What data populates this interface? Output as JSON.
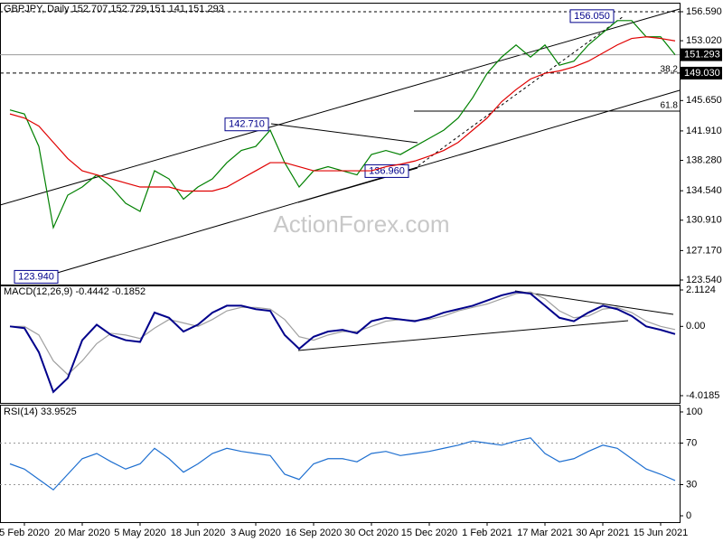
{
  "chart_data": [
    {
      "type": "line",
      "title": "GBPJPY, Daily 152.707,152.729,151.141,151.293",
      "watermark": "ActionForex.com",
      "ylim": [
        123.54,
        156.59
      ],
      "yticks": [
        {
          "value": 156.59,
          "label": "156.590"
        },
        {
          "value": 153.02,
          "label": "153.020"
        },
        {
          "value": 145.65,
          "label": "145.650"
        },
        {
          "value": 141.91,
          "label": "141.910"
        },
        {
          "value": 138.28,
          "label": "138.280"
        },
        {
          "value": 134.54,
          "label": "134.540"
        },
        {
          "value": 130.91,
          "label": "130.910"
        },
        {
          "value": 127.17,
          "label": "127.170"
        },
        {
          "value": 123.54,
          "label": "123.540"
        }
      ],
      "levels": [
        {
          "value": 149.03,
          "label": "149.030"
        },
        {
          "value": 151.293,
          "label": "151.293"
        }
      ],
      "fib_levels": [
        38.2,
        61.8
      ],
      "annotations": [
        {
          "value": 156.05,
          "label": "156.050"
        },
        {
          "value": 142.71,
          "label": "142.710"
        },
        {
          "value": 136.96,
          "label": "136.960"
        },
        {
          "value": 123.94,
          "label": "123.940"
        }
      ],
      "series": [
        {
          "color": "#008000",
          "values": [
            144.5,
            144,
            140,
            130,
            134,
            135,
            136.5,
            135,
            133,
            132,
            137,
            136,
            133.5,
            135,
            136,
            138,
            139.5,
            140,
            142,
            138,
            135,
            137,
            137.5,
            137,
            136.5,
            139,
            139.5,
            139,
            140,
            141,
            142,
            143.5,
            146,
            149,
            151,
            152.5,
            151,
            152.5,
            150,
            150.5,
            152.5,
            154,
            155.5,
            155.5,
            153.5,
            153.5,
            151.293
          ]
        },
        {
          "color": "#e00000",
          "values": [
            144,
            143.5,
            142.5,
            140.5,
            138.5,
            137,
            136.5,
            136,
            135.5,
            135,
            135,
            135,
            134.5,
            134.5,
            134.5,
            135,
            136,
            137,
            138,
            138,
            137.5,
            137,
            137,
            137,
            137,
            137,
            137.5,
            137.8,
            138.2,
            138.8,
            139.5,
            140.5,
            142,
            143.5,
            145.5,
            147,
            148.3,
            149,
            149.3,
            149.8,
            150.5,
            151.5,
            152.5,
            153.3,
            153.5,
            153.3,
            153
          ]
        }
      ]
    },
    {
      "type": "line",
      "title": "MACD(12,26,9) -0.4442 -0.1852",
      "ylim": [
        -4.0185,
        2.1124
      ],
      "yticks": [
        2.1124,
        {
          "value": 0,
          "label": "0.00"
        },
        -4.0185
      ],
      "series": [
        {
          "color": "#a0a0a0",
          "values": [
            0,
            0,
            -0.5,
            -2,
            -2.8,
            -2,
            -1,
            -0.4,
            -0.5,
            -0.7,
            -0.1,
            0.4,
            0.2,
            0,
            0.4,
            0.9,
            1.1,
            1.1,
            1,
            0.4,
            -0.6,
            -0.8,
            -0.5,
            -0.3,
            -0.3,
            0,
            0.3,
            0.4,
            0.35,
            0.4,
            0.6,
            0.9,
            1.1,
            1.3,
            1.6,
            1.9,
            2,
            1.6,
            0.9,
            0.5,
            0.6,
            1,
            1.1,
            0.8,
            0.3,
            0,
            -0.1852
          ]
        },
        {
          "color": "#00008b",
          "values": [
            0,
            -0.1,
            -1.5,
            -3.8,
            -3,
            -0.8,
            0.1,
            -0.5,
            -0.8,
            -0.9,
            0.8,
            0.5,
            -0.3,
            0.1,
            0.8,
            1.2,
            1.2,
            1,
            0.9,
            -0.5,
            -1.3,
            -0.6,
            -0.3,
            -0.2,
            -0.4,
            0.3,
            0.5,
            0.4,
            0.3,
            0.5,
            0.8,
            1,
            1.2,
            1.5,
            1.8,
            2,
            1.9,
            1.2,
            0.5,
            0.3,
            0.8,
            1.2,
            1,
            0.6,
            0,
            -0.2,
            -0.4442
          ]
        }
      ]
    },
    {
      "type": "line",
      "title": "RSI(14) 33.9525",
      "ylim": [
        0,
        100
      ],
      "yticks": [
        100,
        70,
        30,
        0
      ],
      "categories": [
        null,
        "5 Feb 2020",
        null,
        null,
        null,
        "20 Mar 2020",
        null,
        null,
        null,
        "5 May 2020",
        null,
        null,
        null,
        "18 Jun 2020",
        null,
        null,
        null,
        "3 Aug 2020",
        null,
        null,
        null,
        "16 Sep 2020",
        null,
        null,
        null,
        "30 Oct 2020",
        null,
        null,
        null,
        "15 Dec 2020",
        null,
        null,
        null,
        "1 Feb 2021",
        null,
        null,
        null,
        "17 Mar 2021",
        null,
        null,
        null,
        "30 Apr 2021",
        null,
        null,
        null,
        "15 Jun 2021",
        null
      ],
      "series": [
        {
          "color": "#1e6fd0",
          "values": [
            50,
            45,
            35,
            25,
            40,
            55,
            60,
            52,
            45,
            50,
            65,
            55,
            42,
            50,
            60,
            65,
            62,
            60,
            58,
            40,
            35,
            50,
            55,
            55,
            52,
            60,
            62,
            58,
            60,
            62,
            65,
            68,
            72,
            70,
            68,
            72,
            75,
            60,
            52,
            55,
            62,
            68,
            65,
            55,
            45,
            40,
            33.9525
          ]
        }
      ]
    }
  ]
}
